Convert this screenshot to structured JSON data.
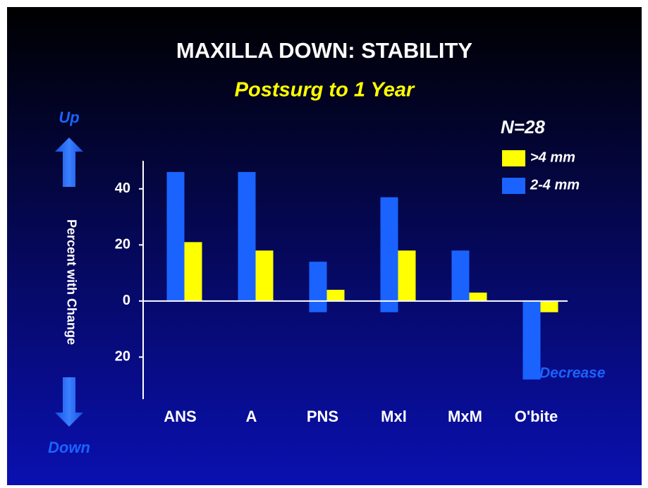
{
  "chart_data": {
    "type": "bar",
    "title": "MAXILLA DOWN: STABILITY",
    "subtitle": "Postsurg to 1 Year",
    "y_label": "Percent with Change",
    "up_label": "Up",
    "down_label": "Down",
    "legend_title": "N=28",
    "annotation": "Decrease",
    "categories": [
      "ANS",
      "A",
      "PNS",
      "Mxl",
      "MxM",
      "O'bite"
    ],
    "series": [
      {
        "name": "2-4 mm",
        "color": "#1a63ff",
        "values": [
          46,
          46,
          14,
          37,
          18,
          0
        ],
        "decrease": [
          0,
          0,
          -4,
          -4,
          0,
          -28
        ]
      },
      {
        "name": ">4 mm",
        "color": "#ffff00",
        "values": [
          21,
          18,
          4,
          18,
          3,
          0
        ],
        "decrease": [
          0,
          0,
          0,
          0,
          0,
          -4
        ]
      }
    ],
    "ylim": [
      -35,
      50
    ],
    "yticks": [
      {
        "value": -20,
        "label": "20"
      },
      0,
      20,
      40
    ]
  }
}
